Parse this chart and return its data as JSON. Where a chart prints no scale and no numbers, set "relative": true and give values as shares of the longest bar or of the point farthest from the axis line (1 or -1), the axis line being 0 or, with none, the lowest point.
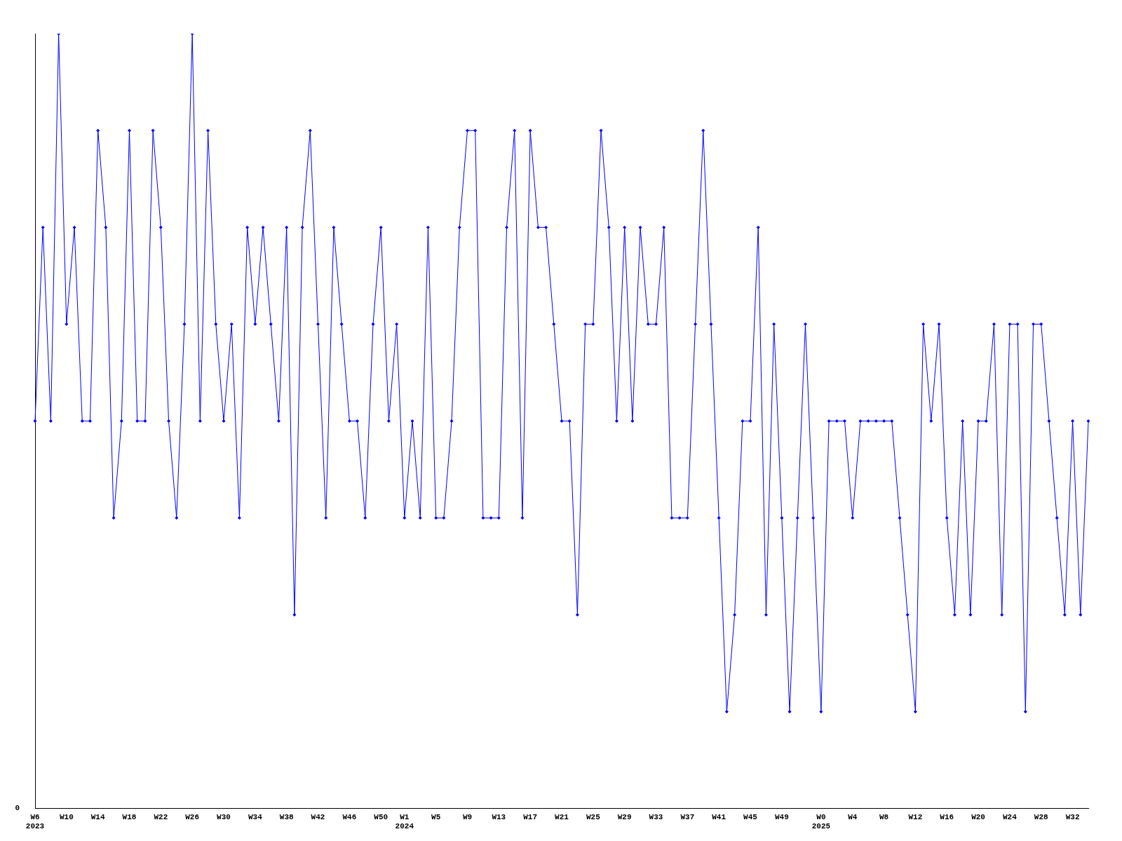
{
  "chart_data": {
    "type": "line",
    "relative": true,
    "color": "#0000ff",
    "marker": "diamond",
    "grid": false,
    "legend": false,
    "annotations": [
      "0"
    ],
    "categories": [
      "W6\n2023",
      null,
      null,
      null,
      "W10",
      null,
      null,
      null,
      "W14",
      null,
      null,
      null,
      "W18",
      null,
      null,
      null,
      "W22",
      null,
      null,
      null,
      "W26",
      null,
      null,
      null,
      "W30",
      null,
      null,
      null,
      "W34",
      null,
      null,
      null,
      "W38",
      null,
      null,
      null,
      "W42",
      null,
      null,
      null,
      "W46",
      null,
      null,
      null,
      "W50",
      null,
      null,
      "W1\n2024",
      null,
      null,
      null,
      "W5",
      null,
      null,
      null,
      "W9",
      null,
      null,
      null,
      "W13",
      null,
      null,
      null,
      "W17",
      null,
      null,
      null,
      "W21",
      null,
      null,
      null,
      "W25",
      null,
      null,
      null,
      "W29",
      null,
      null,
      null,
      "W33",
      null,
      null,
      null,
      "W37",
      null,
      null,
      null,
      "W41",
      null,
      null,
      null,
      "W45",
      null,
      null,
      null,
      "W49",
      null,
      null,
      null,
      null,
      "W0\n2025",
      null,
      null,
      null,
      "W4",
      null,
      null,
      null,
      "W8",
      null,
      null,
      null,
      "W12",
      null,
      null,
      null,
      "W16",
      null,
      null,
      null,
      "W20",
      null,
      null,
      null,
      "W24",
      null,
      null,
      null,
      "W28",
      null,
      null,
      null,
      "W32",
      null,
      null
    ],
    "values": [
      0.5,
      0.75,
      0.5,
      1,
      0.625,
      0.75,
      0.5,
      0.5,
      0.875,
      0.75,
      0.375,
      0.5,
      0.875,
      0.5,
      0.5,
      0.875,
      0.75,
      0.5,
      0.375,
      0.625,
      1,
      0.5,
      0.875,
      0.625,
      0.5,
      0.625,
      0.375,
      0.75,
      0.625,
      0.75,
      0.625,
      0.5,
      0.75,
      0.25,
      0.75,
      0.875,
      0.625,
      0.375,
      0.75,
      0.625,
      0.5,
      0.5,
      0.375,
      0.625,
      0.75,
      0.5,
      0.625,
      0.375,
      0.5,
      0.375,
      0.75,
      0.375,
      0.375,
      0.5,
      0.75,
      0.875,
      0.875,
      0.375,
      0.375,
      0.375,
      0.75,
      0.875,
      0.375,
      0.875,
      0.75,
      0.75,
      0.625,
      0.5,
      0.5,
      0.25,
      0.625,
      0.625,
      0.875,
      0.75,
      0.5,
      0.75,
      0.5,
      0.75,
      0.625,
      0.625,
      0.75,
      0.375,
      0.375,
      0.375,
      0.625,
      0.875,
      0.625,
      0.375,
      0.125,
      0.25,
      0.5,
      0.5,
      0.75,
      0.25,
      0.625,
      0.375,
      0.125,
      0.375,
      0.625,
      0.375,
      0.125,
      0.5,
      0.5,
      0.5,
      0.375,
      0.5,
      0.5,
      0.5,
      0.5,
      0.5,
      0.375,
      0.25,
      0.125,
      0.625,
      0.5,
      0.625,
      0.375,
      0.25,
      0.5,
      0.25,
      0.5,
      0.5,
      0.625,
      0.25,
      0.625,
      0.625,
      0.125,
      0.625,
      0.625,
      0.5,
      0.375,
      0.25,
      0.5,
      0.25,
      0.5
    ]
  }
}
